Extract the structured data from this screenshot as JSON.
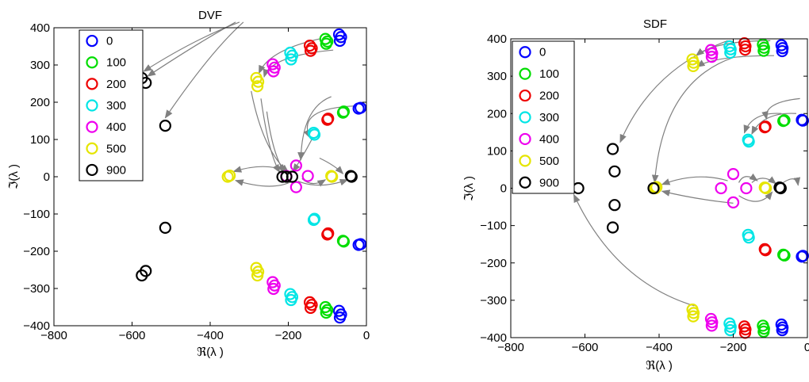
{
  "chart_data": [
    {
      "type": "scatter",
      "title": "DVF",
      "xlabel": "ℜ(λ )",
      "ylabel": "ℑ(λ )",
      "xlim": [
        -800,
        0
      ],
      "ylim": [
        -400,
        400
      ],
      "xticks": [
        -800,
        -600,
        -400,
        -200,
        0
      ],
      "xtick_labels": [
        "−800",
        "−600",
        "−400",
        "−200",
        "0"
      ],
      "yticks": [
        -400,
        -300,
        -200,
        -100,
        0,
        100,
        200,
        300,
        400
      ],
      "ytick_labels": [
        "−400",
        "−300",
        "−200",
        "−100",
        "0",
        "100",
        "200",
        "300",
        "400"
      ],
      "grid": false,
      "legend_position": "top-left",
      "marker": "open-circle",
      "series": [
        {
          "name": "0",
          "color": "#0000ff",
          "points": [
            [
              -20,
              183
            ],
            [
              -15,
              185
            ],
            [
              -70,
              382
            ],
            [
              -65,
              375
            ],
            [
              -68,
              365
            ],
            [
              -20,
              -183
            ],
            [
              -15,
              -181
            ],
            [
              -70,
              -360
            ],
            [
              -65,
              -370
            ],
            [
              -68,
              -378
            ]
          ]
        },
        {
          "name": "100",
          "color": "#00dd00",
          "points": [
            [
              -60,
              172
            ],
            [
              -58,
              175
            ],
            [
              -105,
              370
            ],
            [
              -100,
              363
            ],
            [
              -103,
              357
            ],
            [
              -60,
              -172
            ],
            [
              -58,
              -174
            ],
            [
              -105,
              -350
            ],
            [
              -100,
              -358
            ],
            [
              -103,
              -365
            ]
          ]
        },
        {
          "name": "200",
          "color": "#ee0000",
          "points": [
            [
              -100,
              153
            ],
            [
              -98,
              156
            ],
            [
              -145,
              352
            ],
            [
              -140,
              345
            ],
            [
              -143,
              338
            ],
            [
              -100,
              -155
            ],
            [
              -98,
              -152
            ],
            [
              -145,
              -337
            ],
            [
              -140,
              -344
            ],
            [
              -143,
              -352
            ]
          ]
        },
        {
          "name": "300",
          "color": "#00e5e5",
          "points": [
            [
              -135,
              118
            ],
            [
              -133,
              113
            ],
            [
              -195,
              333
            ],
            [
              -190,
              325
            ],
            [
              -193,
              315
            ],
            [
              -135,
              -116
            ],
            [
              -133,
              -113
            ],
            [
              -195,
              -315
            ],
            [
              -190,
              -323
            ],
            [
              -193,
              -331
            ]
          ]
        },
        {
          "name": "400",
          "color": "#ee00ee",
          "points": [
            [
              -180,
              30
            ],
            [
              -180,
              -28
            ],
            [
              -150,
              2
            ],
            [
              -205,
              2
            ],
            [
              -240,
              302
            ],
            [
              -235,
              293
            ],
            [
              -238,
              283
            ],
            [
              -240,
              -283
            ],
            [
              -235,
              -292
            ],
            [
              -238,
              -301
            ]
          ]
        },
        {
          "name": "500",
          "color": "#e5e500",
          "points": [
            [
              -90,
              2
            ],
            [
              -88,
              0
            ],
            [
              -355,
              0
            ],
            [
              -350,
              3
            ],
            [
              -282,
              265
            ],
            [
              -277,
              255
            ],
            [
              -279,
              243
            ],
            [
              -282,
              -245
            ],
            [
              -277,
              -255
            ],
            [
              -279,
              -265
            ]
          ]
        },
        {
          "name": "900",
          "color": "#000000",
          "points": [
            [
              -40,
              2
            ],
            [
              -38,
              0
            ],
            [
              -215,
              0
            ],
            [
              -205,
              0
            ],
            [
              -190,
              0
            ],
            [
              -575,
              265
            ],
            [
              -565,
              252
            ],
            [
              -515,
              137
            ],
            [
              -575,
              -265
            ],
            [
              -565,
              -253
            ],
            [
              -515,
              -137
            ]
          ]
        }
      ]
    },
    {
      "type": "scatter",
      "title": "SDF",
      "xlabel": "ℜ(λ )",
      "ylabel": "ℑ(λ )",
      "xlim": [
        -800,
        0
      ],
      "ylim": [
        -400,
        400
      ],
      "xticks": [
        -800,
        -600,
        -400,
        -200,
        0
      ],
      "xtick_labels": [
        "−800",
        "−600",
        "−400",
        "−200",
        "0"
      ],
      "yticks": [
        -400,
        -300,
        -200,
        -100,
        0,
        100,
        200,
        300,
        400
      ],
      "ytick_labels": [
        "−400",
        "−300",
        "−200",
        "−100",
        "0",
        "100",
        "200",
        "300",
        "400"
      ],
      "grid": false,
      "legend_position": "top-left",
      "marker": "open-circle",
      "series": [
        {
          "name": "0",
          "color": "#0000ff",
          "points": [
            [
              -15,
              183
            ],
            [
              -12,
              181
            ],
            [
              -70,
              383
            ],
            [
              -67,
              375
            ],
            [
              -68,
              367
            ],
            [
              -15,
              -183
            ],
            [
              -12,
              -181
            ],
            [
              -70,
              -365
            ],
            [
              -67,
              -373
            ],
            [
              -68,
              -380
            ]
          ]
        },
        {
          "name": "100",
          "color": "#00dd00",
          "points": [
            [
              -65,
              180
            ],
            [
              -62,
              182
            ],
            [
              -120,
              385
            ],
            [
              -117,
              376
            ],
            [
              -118,
              368
            ],
            [
              -65,
              -178
            ],
            [
              -62,
              -180
            ],
            [
              -120,
              -368
            ],
            [
              -117,
              -376
            ],
            [
              -118,
              -384
            ]
          ]
        },
        {
          "name": "200",
          "color": "#ee0000",
          "points": [
            [
              -115,
              163
            ],
            [
              -113,
              165
            ],
            [
              -170,
              388
            ],
            [
              -167,
              380
            ],
            [
              -168,
              371
            ],
            [
              -115,
              -163
            ],
            [
              -113,
              -166
            ],
            [
              -170,
              -370
            ],
            [
              -167,
              -378
            ],
            [
              -168,
              -387
            ]
          ]
        },
        {
          "name": "300",
          "color": "#00e5e5",
          "points": [
            [
              -160,
              130
            ],
            [
              -158,
              125
            ],
            [
              -210,
              380
            ],
            [
              -207,
              372
            ],
            [
              -208,
              363
            ],
            [
              -160,
              -125
            ],
            [
              -158,
              -132
            ],
            [
              -210,
              -362
            ],
            [
              -207,
              -371
            ],
            [
              -208,
              -380
            ]
          ]
        },
        {
          "name": "400",
          "color": "#ee00ee",
          "points": [
            [
              -200,
              38
            ],
            [
              -200,
              -38
            ],
            [
              -165,
              0
            ],
            [
              -233,
              0
            ],
            [
              -260,
              370
            ],
            [
              -257,
              361
            ],
            [
              -258,
              352
            ],
            [
              -260,
              -350
            ],
            [
              -257,
              -359
            ],
            [
              -258,
              -368
            ]
          ]
        },
        {
          "name": "500",
          "color": "#e5e500",
          "points": [
            [
              -115,
              2
            ],
            [
              -112,
              0
            ],
            [
              -410,
              0
            ],
            [
              -407,
              3
            ],
            [
              -310,
              345
            ],
            [
              -307,
              336
            ],
            [
              -308,
              327
            ],
            [
              -310,
              -325
            ],
            [
              -307,
              -334
            ],
            [
              -308,
              -343
            ]
          ]
        },
        {
          "name": "900",
          "color": "#000000",
          "points": [
            [
              -75,
              2
            ],
            [
              -72,
              0
            ],
            [
              -415,
              0
            ],
            [
              -618,
              0
            ],
            [
              -525,
              105
            ],
            [
              -520,
              45
            ],
            [
              -520,
              -45
            ],
            [
              -525,
              -105
            ]
          ]
        }
      ]
    }
  ],
  "legend_entries": [
    "0",
    "100",
    "200",
    "300",
    "400",
    "500",
    "900"
  ]
}
